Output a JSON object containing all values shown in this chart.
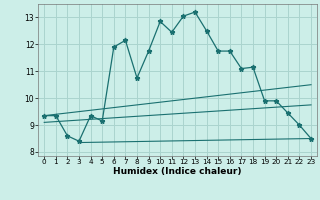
{
  "xlabel": "Humidex (Indice chaleur)",
  "background_color": "#cceee8",
  "grid_color": "#aad4ce",
  "line_color": "#1a7070",
  "xlim": [
    -0.5,
    23.5
  ],
  "ylim": [
    7.85,
    13.5
  ],
  "yticks": [
    8,
    9,
    10,
    11,
    12,
    13
  ],
  "xticks": [
    0,
    1,
    2,
    3,
    4,
    5,
    6,
    7,
    8,
    9,
    10,
    11,
    12,
    13,
    14,
    15,
    16,
    17,
    18,
    19,
    20,
    21,
    22,
    23
  ],
  "line1_x": [
    0,
    1,
    2,
    3,
    4,
    5,
    6,
    7,
    8,
    9,
    10,
    11,
    12,
    13,
    14,
    15,
    16,
    17,
    18,
    19,
    20,
    21,
    22,
    23
  ],
  "line1_y": [
    9.35,
    9.35,
    8.6,
    8.4,
    9.35,
    9.15,
    11.9,
    12.15,
    10.75,
    11.75,
    12.85,
    12.45,
    13.05,
    13.2,
    12.5,
    11.75,
    11.75,
    11.1,
    11.15,
    9.9,
    9.9,
    9.45,
    9.0,
    8.5
  ],
  "line2_x": [
    0,
    23
  ],
  "line2_y": [
    9.35,
    10.5
  ],
  "line3_x": [
    0,
    23
  ],
  "line3_y": [
    9.1,
    9.75
  ],
  "line4_x": [
    3,
    23
  ],
  "line4_y": [
    8.35,
    8.5
  ]
}
